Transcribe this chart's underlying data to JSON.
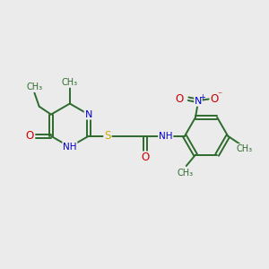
{
  "background_color": "#ebebeb",
  "bond_color": "#2d6b2d",
  "atom_colors": {
    "N": "#0000cc",
    "O": "#cc0000",
    "S": "#ccaa00",
    "H": "#777777",
    "C": "#2d6b2d"
  },
  "figsize": [
    3.0,
    3.0
  ],
  "dpi": 100,
  "xlim": [
    0,
    10
  ],
  "ylim": [
    0,
    10
  ]
}
